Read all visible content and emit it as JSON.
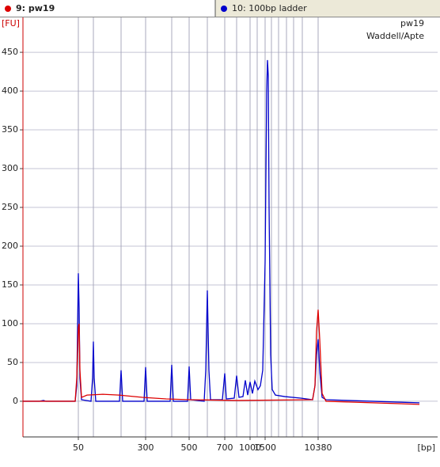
{
  "chart_data": {
    "type": "line",
    "xlabel": "[bp]",
    "ylabel": "[FU]",
    "annotations": [
      "pw19",
      "Waddell/Apte"
    ],
    "xlim": [
      5.8,
      110.6
    ],
    "ylim": [
      -46,
      495
    ],
    "yticks": [
      0,
      50,
      100,
      150,
      200,
      250,
      300,
      350,
      400,
      450
    ],
    "xticks": [
      {
        "value": 19.8,
        "label": "50"
      },
      {
        "value": 23.6,
        "label": null
      },
      {
        "value": 30.6,
        "label": null
      },
      {
        "value": 36.8,
        "label": "300"
      },
      {
        "value": 43.4,
        "label": null
      },
      {
        "value": 47.8,
        "label": "500"
      },
      {
        "value": 52.4,
        "label": null
      },
      {
        "value": 56.8,
        "label": "700"
      },
      {
        "value": 59.8,
        "label": null
      },
      {
        "value": 63.2,
        "label": "1000"
      },
      {
        "value": 65.0,
        "label": null
      },
      {
        "value": 67.0,
        "label": "1500"
      },
      {
        "value": 68.6,
        "label": null
      },
      {
        "value": 70.4,
        "label": null
      },
      {
        "value": 72.4,
        "label": null
      },
      {
        "value": 74.2,
        "label": null
      },
      {
        "value": 76.4,
        "label": null
      },
      {
        "value": 80.4,
        "label": "10380"
      }
    ],
    "grid": true,
    "series": [
      {
        "name": "10: 100bp ladder",
        "color": "#0000cc",
        "x": [
          5.8,
          10,
          11,
          11.6,
          19,
          19.4,
          19.8,
          20,
          20.2,
          20.6,
          23,
          23.4,
          23.6,
          23.8,
          24.2,
          30.2,
          30.6,
          31,
          36.4,
          36.8,
          37.2,
          43,
          43.4,
          43.8,
          47.4,
          47.8,
          48.2,
          51.6,
          52,
          52.4,
          52.8,
          53.2,
          56.2,
          56.8,
          57.2,
          59.2,
          59.8,
          60.4,
          61.4,
          62,
          62.6,
          63.2,
          63.8,
          64.4,
          65.2,
          65.8,
          66.4,
          67,
          67.4,
          67.6,
          67.8,
          68,
          68.4,
          68.8,
          69.6,
          72,
          76,
          79,
          79.6,
          80,
          80.4,
          80.8,
          81.4,
          82.4,
          88,
          100,
          106
        ],
        "values": [
          0,
          0,
          1,
          0,
          0,
          20,
          165,
          120,
          30,
          2,
          0,
          30,
          77,
          30,
          0,
          0,
          40,
          0,
          0,
          44,
          0,
          0,
          47,
          0,
          0,
          45,
          2,
          0,
          40,
          143,
          40,
          2,
          2,
          36,
          3,
          4,
          33,
          5,
          6,
          27,
          8,
          25,
          10,
          26,
          15,
          20,
          40,
          180,
          400,
          440,
          420,
          250,
          60,
          15,
          8,
          6,
          4,
          2,
          20,
          60,
          80,
          40,
          5,
          2,
          1,
          -1,
          -2
        ]
      },
      {
        "name": "9: pw19",
        "color": "#dd0000",
        "x": [
          5.8,
          19,
          19.4,
          19.8,
          20,
          20.2,
          20.6,
          22,
          26,
          30,
          36,
          42,
          48,
          60,
          79,
          79.6,
          80,
          80.4,
          80.8,
          81.4,
          82.4,
          106
        ],
        "values": [
          0,
          0,
          30,
          95,
          100,
          40,
          5,
          8,
          9,
          8,
          5,
          3,
          2,
          1,
          2,
          20,
          90,
          118,
          80,
          10,
          0,
          -4
        ]
      }
    ]
  }
}
